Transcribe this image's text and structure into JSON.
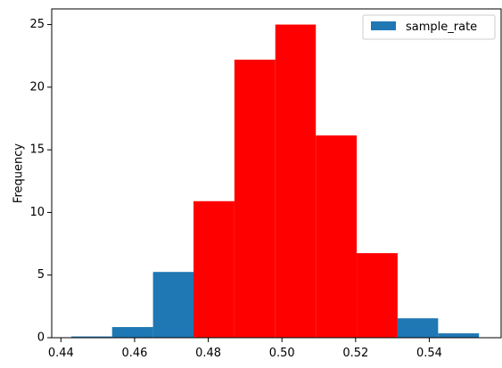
{
  "chart_data": {
    "type": "bar",
    "subtype": "histogram",
    "title": "",
    "xlabel": "",
    "ylabel": "Frequency",
    "xlim": [
      0.4375,
      0.5595
    ],
    "ylim": [
      0,
      26.25
    ],
    "xticks": [
      0.44,
      0.46,
      0.48,
      0.5,
      0.52,
      0.54
    ],
    "xtick_labels": [
      "0.44",
      "0.46",
      "0.48",
      "0.50",
      "0.52",
      "0.54"
    ],
    "yticks": [
      0,
      5,
      10,
      15,
      20,
      25
    ],
    "ytick_labels": [
      "0",
      "5",
      "10",
      "15",
      "20",
      "25"
    ],
    "grid": false,
    "legend": {
      "position": "top-right",
      "entries": [
        {
          "name": "sample_rate",
          "color": "#1f77b4"
        }
      ]
    },
    "bins": [
      {
        "left": 0.4428,
        "right": 0.4539,
        "value": 0.1,
        "color": "#1f77b4"
      },
      {
        "left": 0.4539,
        "right": 0.465,
        "value": 0.85,
        "color": "#1f77b4"
      },
      {
        "left": 0.465,
        "right": 0.476,
        "value": 5.25,
        "color": "#1f77b4"
      },
      {
        "left": 0.476,
        "right": 0.4871,
        "value": 10.9,
        "color": "#ff0000"
      },
      {
        "left": 0.4871,
        "right": 0.4982,
        "value": 22.2,
        "color": "#ff0000"
      },
      {
        "left": 0.4982,
        "right": 0.5092,
        "value": 25.0,
        "color": "#ff0000"
      },
      {
        "left": 0.5092,
        "right": 0.5203,
        "value": 16.15,
        "color": "#ff0000"
      },
      {
        "left": 0.5203,
        "right": 0.5314,
        "value": 6.75,
        "color": "#ff0000"
      },
      {
        "left": 0.5314,
        "right": 0.5424,
        "value": 1.55,
        "color": "#1f77b4"
      },
      {
        "left": 0.5424,
        "right": 0.5535,
        "value": 0.35,
        "color": "#1f77b4"
      }
    ]
  }
}
